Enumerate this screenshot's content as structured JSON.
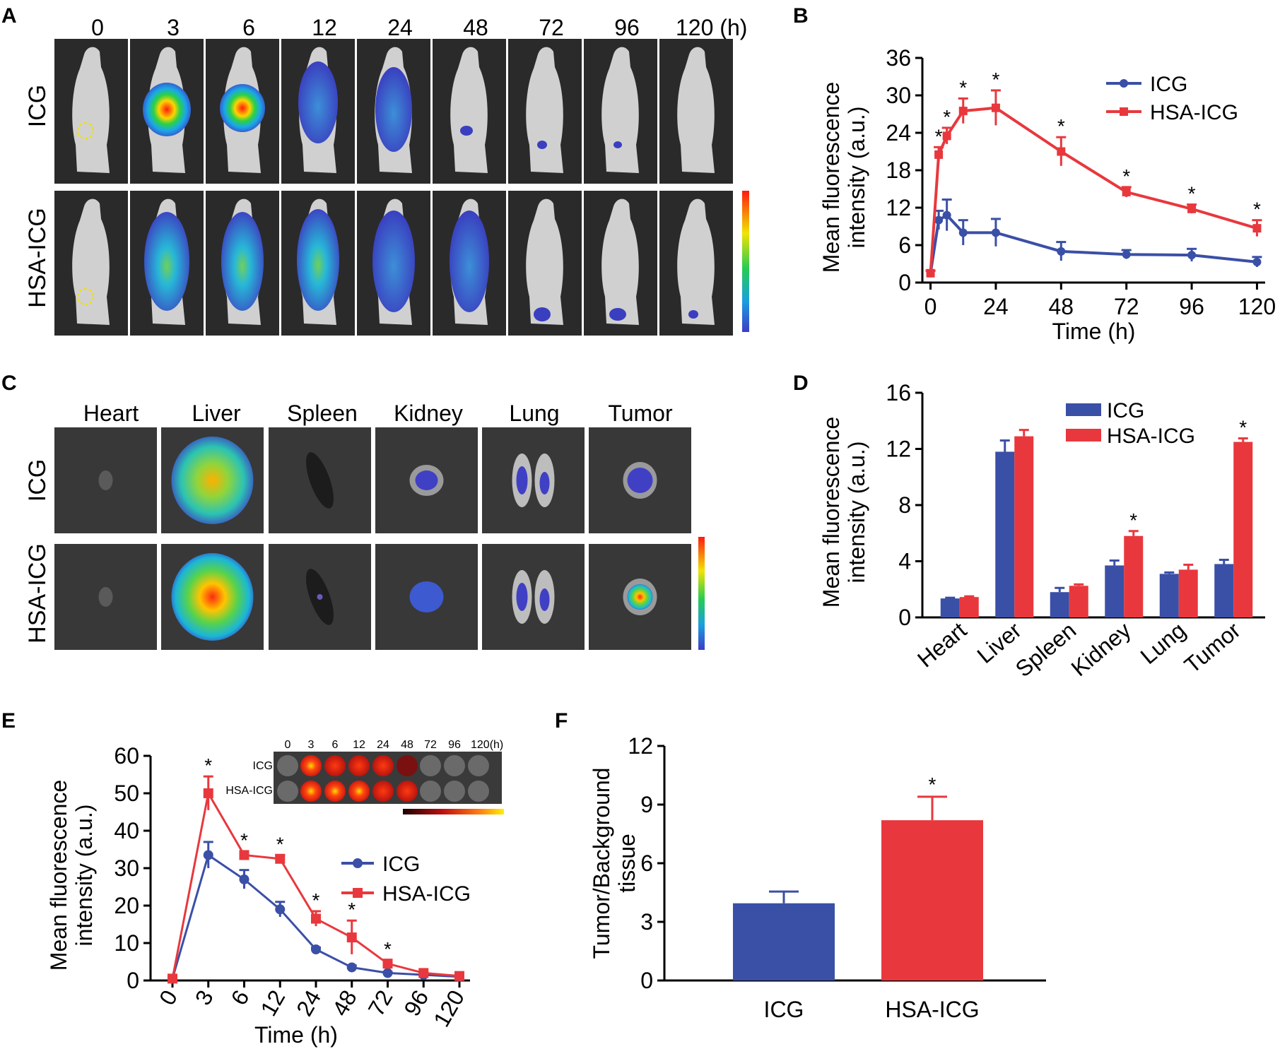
{
  "panels": {
    "A": "A",
    "B": "B",
    "C": "C",
    "D": "D",
    "E": "E",
    "F": "F"
  },
  "colors": {
    "icg": "#3a4fa6",
    "hsa": "#e8383d"
  },
  "panelA": {
    "timepoints": [
      "0",
      "3",
      "6",
      "12",
      "24",
      "48",
      "72",
      "96",
      "120 (h)"
    ],
    "rows": [
      "ICG",
      "HSA-ICG"
    ]
  },
  "panelC": {
    "organs": [
      "Heart",
      "Liver",
      "Spleen",
      "Kidney",
      "Lung",
      "Tumor"
    ],
    "rows": [
      "ICG",
      "HSA-ICG"
    ]
  },
  "panelE_inset": {
    "timepoints": [
      "0",
      "3",
      "6",
      "12",
      "24",
      "48",
      "72",
      "96",
      "120(h)"
    ],
    "rows": [
      "ICG",
      "HSA-ICG"
    ]
  },
  "chart_data": [
    {
      "id": "B",
      "type": "line",
      "xlabel": "Time (h)",
      "ylabel_lines": [
        "Mean fluorescence",
        "intensity (a.u.)"
      ],
      "x": [
        0,
        3,
        6,
        12,
        24,
        48,
        72,
        96,
        120
      ],
      "xticks": [
        0,
        24,
        48,
        72,
        96,
        120
      ],
      "yticks": [
        0,
        6,
        12,
        18,
        24,
        30,
        36
      ],
      "xlim": [
        -3,
        123
      ],
      "ylim": [
        0,
        36
      ],
      "series": [
        {
          "name": "ICG",
          "values": [
            1.5,
            10,
            10.8,
            8,
            8,
            5,
            4.5,
            4.4,
            3.3
          ],
          "errors": [
            0.4,
            1.5,
            2.5,
            2,
            2.2,
            1.5,
            0.7,
            1,
            0.8
          ]
        },
        {
          "name": "HSA-ICG",
          "values": [
            1.5,
            20.5,
            23.5,
            27.5,
            28,
            21,
            14.5,
            11.8,
            8.7
          ],
          "errors": [
            0.4,
            1.2,
            1.3,
            2,
            2.8,
            2.3,
            0.8,
            0.7,
            1.3
          ]
        }
      ],
      "significance": [
        "3",
        "6",
        "12",
        "24",
        "48",
        "72",
        "96",
        "120"
      ],
      "star": "*"
    },
    {
      "id": "D",
      "type": "bar",
      "categories": [
        "Heart",
        "Liver",
        "Spleen",
        "Kidney",
        "Lung",
        "Tumor"
      ],
      "ylabel_lines": [
        "Mean fluorescence",
        "intensity (a.u.)"
      ],
      "yticks": [
        0,
        4,
        8,
        12,
        16
      ],
      "ylim": [
        0,
        16
      ],
      "series": [
        {
          "name": "ICG",
          "values": [
            1.35,
            11.8,
            1.8,
            3.7,
            3.1,
            3.8
          ],
          "errors": [
            0.05,
            0.8,
            0.3,
            0.35,
            0.1,
            0.3
          ]
        },
        {
          "name": "HSA-ICG",
          "values": [
            1.45,
            12.9,
            2.25,
            5.8,
            3.4,
            12.5
          ],
          "errors": [
            0.05,
            0.45,
            0.1,
            0.35,
            0.35,
            0.25
          ]
        }
      ],
      "significance": [
        "Kidney",
        "Tumor"
      ],
      "star": "*"
    },
    {
      "id": "E",
      "type": "line",
      "xlabel": "Time (h)",
      "ylabel_lines": [
        "Mean fluorescence",
        "intensity (a.u.)"
      ],
      "categories": [
        "0",
        "3",
        "6",
        "12",
        "24",
        "48",
        "72",
        "96",
        "120"
      ],
      "yticks": [
        0,
        10,
        20,
        30,
        40,
        50,
        60
      ],
      "ylim": [
        0,
        60
      ],
      "series": [
        {
          "name": "ICG",
          "values": [
            0.5,
            33.5,
            27,
            19,
            8.3,
            3.5,
            2,
            1.5,
            1
          ],
          "errors": [
            0.3,
            3.5,
            2.5,
            2,
            0.5,
            0.5,
            0.3,
            0.3,
            0.2
          ]
        },
        {
          "name": "HSA-ICG",
          "values": [
            0.5,
            50,
            33.5,
            32.5,
            16.5,
            11.5,
            4.5,
            2,
            1.2
          ],
          "errors": [
            0.3,
            4.5,
            1,
            1,
            2,
            4.5,
            1,
            0.3,
            0.2
          ]
        }
      ],
      "significance": [
        "3",
        "6",
        "12",
        "24",
        "48",
        "72"
      ],
      "star": "*"
    },
    {
      "id": "F",
      "type": "bar",
      "categories": [
        "ICG",
        "HSA-ICG"
      ],
      "ylabel_lines": [
        "Tumor/Background",
        "tissue"
      ],
      "yticks": [
        0,
        3,
        6,
        9,
        12
      ],
      "ylim": [
        0,
        12
      ],
      "values": [
        3.95,
        8.2
      ],
      "errors": [
        0.6,
        1.2
      ],
      "significance": [
        "HSA-ICG"
      ],
      "star": "*"
    }
  ]
}
